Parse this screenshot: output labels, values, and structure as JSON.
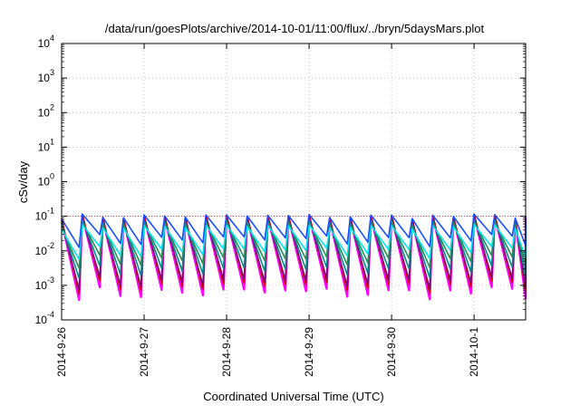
{
  "chart_data": {
    "type": "line",
    "title": "/data/run/goesPlots/archive/2014-10-01/11:00/flux/../bryn/5daysMars.plot",
    "xlabel": "Coordinated Universal Time (UTC)",
    "ylabel": "cSv/day",
    "yscale": "log",
    "ylim": [
      0.0001,
      10000
    ],
    "xlim": [
      "2014-09-26 00:00",
      "2014-10-01 15:00"
    ],
    "x_ticks": [
      "2014-9-26",
      "2014-9-27",
      "2014-9-28",
      "2014-9-29",
      "2014-9-30",
      "2014-10-1"
    ],
    "y_ticks": [
      {
        "base": "10",
        "exp": "-4",
        "value": 0.0001
      },
      {
        "base": "10",
        "exp": "-3",
        "value": 0.001
      },
      {
        "base": "10",
        "exp": "-2",
        "value": 0.01
      },
      {
        "base": "10",
        "exp": "-1",
        "value": 0.1
      },
      {
        "base": "10",
        "exp": "0",
        "value": 1
      },
      {
        "base": "10",
        "exp": "1",
        "value": 10
      },
      {
        "base": "10",
        "exp": "2",
        "value": 100
      },
      {
        "base": "10",
        "exp": "3",
        "value": 1000
      },
      {
        "base": "10",
        "exp": "4",
        "value": 10000
      }
    ],
    "grid": true,
    "reference_line": {
      "value": 0.1,
      "color": "#cc0000"
    },
    "series": [
      {
        "color": "#ff00ff",
        "peak": 0.09,
        "trough": 0.0006
      },
      {
        "color": "#cc0000",
        "peak": 0.1,
        "trough": 0.0009
      },
      {
        "color": "#7a0a7a",
        "peak": 0.08,
        "trough": 0.0012
      },
      {
        "color": "#008b8b",
        "peak": 0.07,
        "trough": 0.0025
      },
      {
        "color": "#2e8b57",
        "peak": 0.06,
        "trough": 0.005
      },
      {
        "color": "#00e5ee",
        "peak": 0.05,
        "trough": 0.009
      },
      {
        "color": "#1c4fff",
        "peak": 0.1,
        "trough": 0.02
      }
    ],
    "oscillation_period_hours": 6
  }
}
